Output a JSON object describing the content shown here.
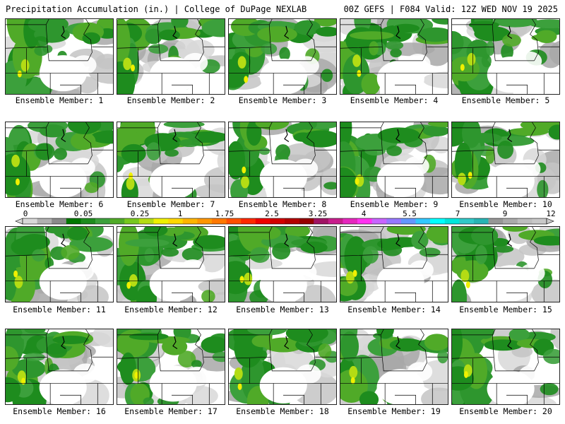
{
  "header": {
    "left_title": "Precipitation Accumulation (in.) | College of DuPage NEXLAB",
    "right_title": "00Z GEFS | F084 Valid: 12Z WED NOV 19 2025"
  },
  "members": [
    {
      "label": "Ensemble Member: 1"
    },
    {
      "label": "Ensemble Member: 2"
    },
    {
      "label": "Ensemble Member: 3"
    },
    {
      "label": "Ensemble Member: 4"
    },
    {
      "label": "Ensemble Member: 5"
    },
    {
      "label": "Ensemble Member: 6"
    },
    {
      "label": "Ensemble Member: 7"
    },
    {
      "label": "Ensemble Member: 8"
    },
    {
      "label": "Ensemble Member: 9"
    },
    {
      "label": "Ensemble Member: 10"
    },
    {
      "label": "Ensemble Member: 11"
    },
    {
      "label": "Ensemble Member: 12"
    },
    {
      "label": "Ensemble Member: 13"
    },
    {
      "label": "Ensemble Member: 14"
    },
    {
      "label": "Ensemble Member: 15"
    },
    {
      "label": "Ensemble Member: 16"
    },
    {
      "label": "Ensemble Member: 17"
    },
    {
      "label": "Ensemble Member: 18"
    },
    {
      "label": "Ensemble Member: 19"
    },
    {
      "label": "Ensemble Member: 20"
    }
  ],
  "legend": {
    "tick_labels": [
      "0",
      "0.05",
      "0.25",
      "1",
      "1.75",
      "2.5",
      "3.25",
      "4",
      "5.5",
      "7",
      "9",
      "12"
    ],
    "colors": [
      "#d8d8d8",
      "#b0b0b0",
      "#8a8a8a",
      "#007800",
      "#1e8c1e",
      "#3ca03c",
      "#50aa28",
      "#78c81e",
      "#b4dc14",
      "#f0f000",
      "#ffd700",
      "#ffb400",
      "#ff9600",
      "#ff7800",
      "#ff5000",
      "#ff2800",
      "#f00000",
      "#d20000",
      "#b40000",
      "#960000",
      "#a01464",
      "#c81e8c",
      "#e628be",
      "#ff32f0",
      "#c864ff",
      "#9678ff",
      "#6496ff",
      "#32c8ff",
      "#00ffff",
      "#00e6dc",
      "#32c8c8",
      "#28b4b4",
      "#969696",
      "#aaaaaa",
      "#bebebe",
      "#c8c8c8"
    ]
  }
}
